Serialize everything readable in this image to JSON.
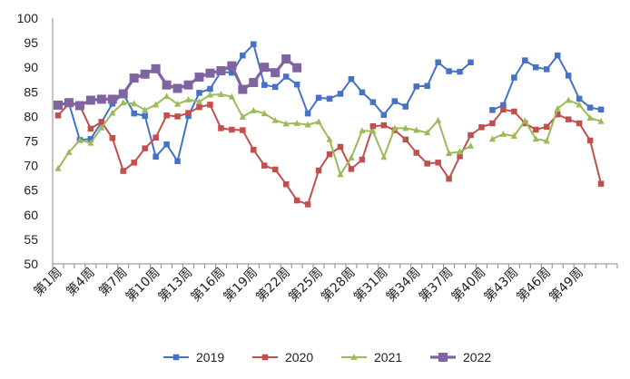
{
  "chart_data": {
    "type": "line",
    "title": "",
    "xlabel": "",
    "ylabel": "",
    "ylim": [
      50,
      100
    ],
    "yticks": [
      50,
      55,
      60,
      65,
      70,
      75,
      80,
      85,
      90,
      95,
      100
    ],
    "grid": false,
    "legend_position": "bottom",
    "x": [
      "第1周",
      "第2周",
      "第3周",
      "第4周",
      "第5周",
      "第6周",
      "第7周",
      "第8周",
      "第9周",
      "第10周",
      "第11周",
      "第12周",
      "第13周",
      "第14周",
      "第15周",
      "第16周",
      "第17周",
      "第18周",
      "第19周",
      "第20周",
      "第21周",
      "第22周",
      "第23周",
      "第24周",
      "第25周",
      "第26周",
      "第27周",
      "第28周",
      "第29周",
      "第30周",
      "第31周",
      "第32周",
      "第33周",
      "第34周",
      "第35周",
      "第36周",
      "第37周",
      "第38周",
      "第39周",
      "第40周",
      "第41周",
      "第42周",
      "第43周",
      "第44周",
      "第45周",
      "第46周",
      "第47周",
      "第48周",
      "第49周",
      "第50周",
      "第51周",
      "第52周"
    ],
    "x_tick_labels": [
      "第1周",
      "第4周",
      "第7周",
      "第10周",
      "第13周",
      "第16周",
      "第19周",
      "第22周",
      "第25周",
      "第28周",
      "第31周",
      "第34周",
      "第37周",
      "第40周",
      "第43周",
      "第46周",
      "第49周"
    ],
    "series": [
      {
        "name": "2019",
        "color": "#4472C4",
        "marker": "square",
        "values": [
          82.3,
          82.7,
          75.2,
          75.4,
          78.8,
          82.6,
          84.6,
          80.6,
          80.1,
          71.8,
          74.3,
          70.9,
          80.1,
          84.8,
          85.6,
          89.1,
          88.9,
          92.4,
          94.7,
          86.4,
          86.0,
          88.1,
          86.5,
          80.6,
          83.8,
          83.6,
          84.6,
          87.6,
          84.9,
          82.9,
          80.3,
          83.1,
          82.0,
          86.1,
          86.2,
          91.0,
          89.2,
          89.1,
          91.0,
          null,
          81.3,
          82.3,
          87.9,
          91.4,
          90.0,
          89.6,
          92.4,
          88.3,
          83.6,
          81.8,
          81.4,
          null
        ]
      },
      {
        "name": "2020",
        "color": "#C0504D",
        "marker": "square",
        "values": [
          80.2,
          82.6,
          82.2,
          77.5,
          78.9,
          75.6,
          68.9,
          70.6,
          73.5,
          75.7,
          80.2,
          80.0,
          80.7,
          81.9,
          82.4,
          77.6,
          77.3,
          77.2,
          73.2,
          70.0,
          69.2,
          66.2,
          62.9,
          62.1,
          69.0,
          72.3,
          73.8,
          69.3,
          71.2,
          78.0,
          78.2,
          77.2,
          75.3,
          72.6,
          70.4,
          70.6,
          67.3,
          71.9,
          76.2,
          77.8,
          78.6,
          81.4,
          81.0,
          78.6,
          77.3,
          77.9,
          80.4,
          79.4,
          78.6,
          75.1,
          66.3,
          null
        ]
      },
      {
        "name": "2021",
        "color": "#9BBB59",
        "marker": "triangle",
        "values": [
          69.4,
          72.7,
          75.2,
          74.6,
          77.7,
          80.7,
          82.8,
          82.6,
          81.3,
          82.4,
          84.1,
          82.5,
          83.4,
          83.0,
          84.4,
          84.5,
          84.0,
          79.9,
          81.2,
          80.6,
          79.2,
          78.5,
          78.6,
          78.3,
          78.9,
          75.3,
          68.2,
          71.6,
          77.1,
          77.0,
          71.7,
          77.6,
          77.6,
          77.2,
          76.7,
          79.2,
          72.5,
          72.8,
          74.0,
          null,
          75.4,
          76.4,
          76.0,
          79.1,
          75.4,
          75.0,
          81.6,
          83.3,
          82.4,
          79.7,
          79.0,
          null
        ]
      },
      {
        "name": "2022",
        "color": "#8064A2",
        "marker": "square",
        "values": [
          82.3,
          82.8,
          82.2,
          83.3,
          83.5,
          83.5,
          84.6,
          87.8,
          88.6,
          89.7,
          86.4,
          85.7,
          86.4,
          88.0,
          88.8,
          89.3,
          90.3,
          85.5,
          86.9,
          90.0,
          88.9,
          91.7,
          89.9,
          null,
          null,
          null,
          null,
          null,
          null,
          null,
          null,
          null,
          null,
          null,
          null,
          null,
          null,
          null,
          null,
          null,
          null,
          null,
          null,
          null,
          null,
          null,
          null,
          null,
          null,
          null,
          null,
          null
        ]
      }
    ]
  }
}
